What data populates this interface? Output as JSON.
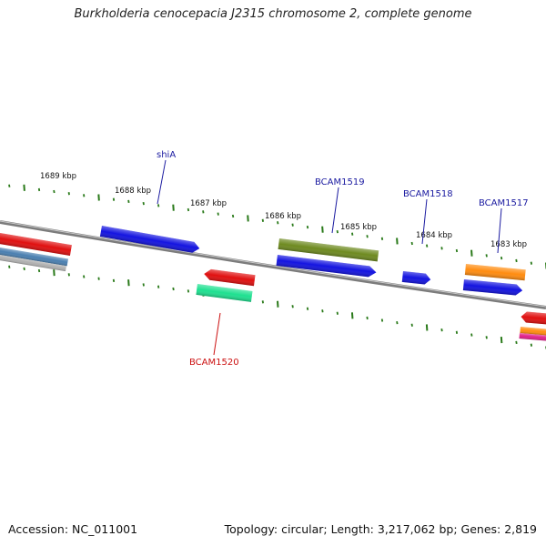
{
  "title": "Burkholderia cenocepacia J2315 chromosome 2, complete genome",
  "footer": {
    "accession": "Accession: NC_011001",
    "summary": "Topology: circular; Length: 3,217,062 bp; Genes: 2,819"
  },
  "colors": {
    "backbone": "#8a8a8a",
    "tick": "#2a7a1a",
    "label_forward": "#1a1aa0",
    "label_reverse": "#cc1111"
  },
  "scale_labels": [
    {
      "text": "1689 kbp"
    },
    {
      "text": "1688 kbp"
    },
    {
      "text": "1687 kbp"
    },
    {
      "text": "1686 kbp"
    },
    {
      "text": "1685 kbp"
    },
    {
      "text": "1684 kbp"
    },
    {
      "text": "1683 kbp"
    }
  ],
  "gene_labels": [
    {
      "text": "shiA",
      "strand": "forward"
    },
    {
      "text": "BCAM1519",
      "strand": "forward"
    },
    {
      "text": "BCAM1518",
      "strand": "forward"
    },
    {
      "text": "BCAM1517",
      "strand": "forward"
    },
    {
      "text": "BCAM1520",
      "strand": "reverse"
    }
  ],
  "features": [
    {
      "name": "left-red-feature",
      "color": "#e01010"
    },
    {
      "name": "left-steelblue-feature",
      "color": "#4a7fb0"
    },
    {
      "name": "left-gray-feature",
      "color": "#b0b0b0"
    },
    {
      "name": "shiA-gene",
      "color": "#1414e0"
    },
    {
      "name": "BCAM1520-red-gene",
      "color": "#e01010"
    },
    {
      "name": "BCAM1520-green-feature",
      "color": "#1ee090"
    },
    {
      "name": "BCAM1519-olive-feature",
      "color": "#6e8a20"
    },
    {
      "name": "BCAM1519-gene",
      "color": "#1414e0"
    },
    {
      "name": "BCAM1518-gene",
      "color": "#1414e0"
    },
    {
      "name": "BCAM1517-orange-feature",
      "color": "#ff8c10"
    },
    {
      "name": "BCAM1517-gene",
      "color": "#1414e0"
    },
    {
      "name": "right-red-feature",
      "color": "#e01010"
    },
    {
      "name": "right-orange-feature",
      "color": "#ff8c10"
    },
    {
      "name": "right-pink-feature",
      "color": "#e0208a"
    }
  ]
}
